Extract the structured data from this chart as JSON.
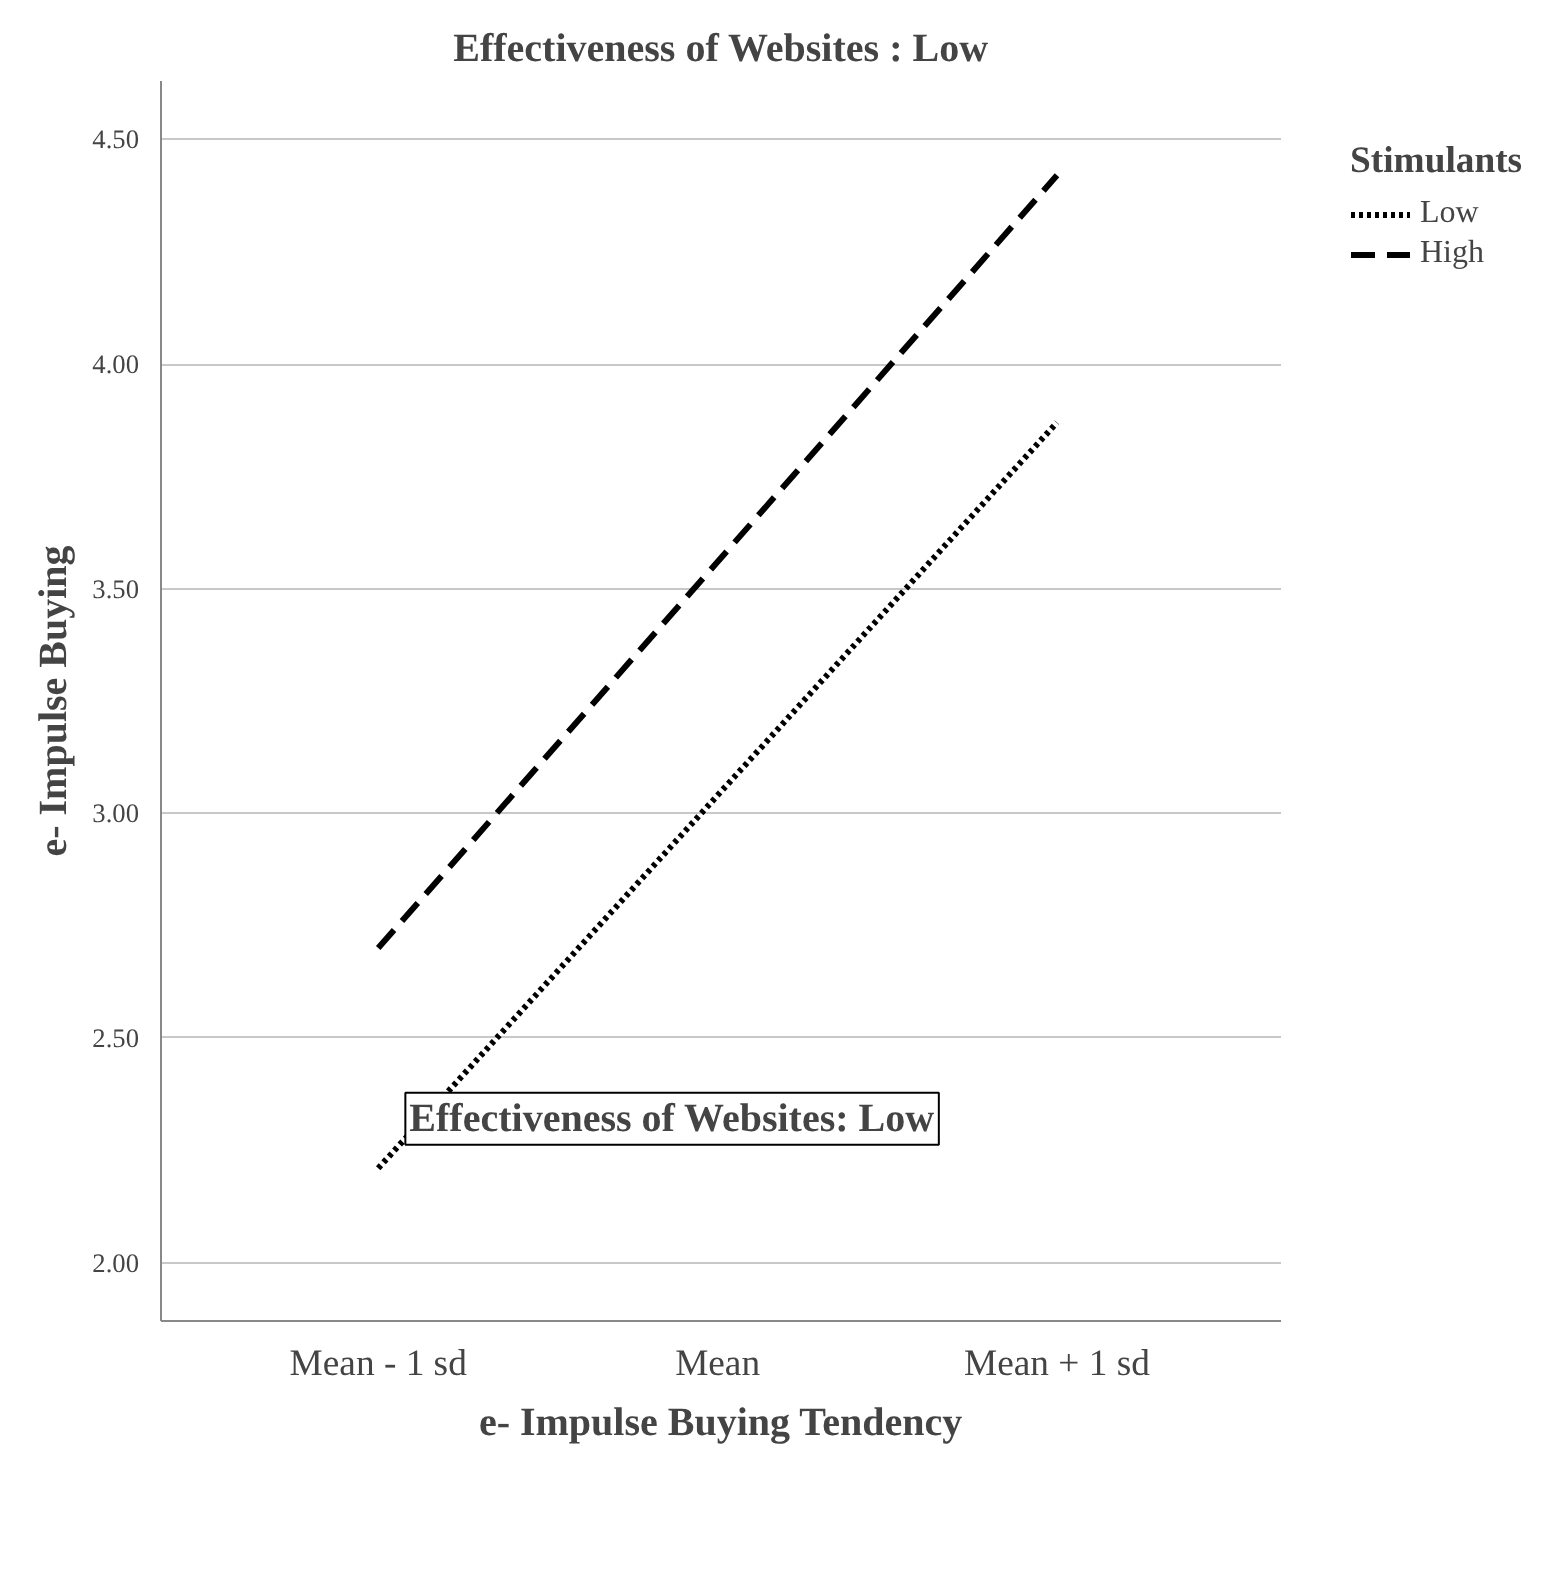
{
  "chart_data": {
    "type": "line",
    "title": "Effectiveness of Websites : Low",
    "xlabel": "e- Impulse Buying Tendency",
    "ylabel": "e- Impulse Buying",
    "legend_title": "Stimulants",
    "categories": [
      "Mean - 1 sd",
      "Mean",
      "Mean + 1 sd"
    ],
    "series": [
      {
        "name": "Low",
        "color": "#000000",
        "line_style": "dotted",
        "values": [
          2.21,
          3.04,
          3.87
        ]
      },
      {
        "name": "High",
        "color": "#000000",
        "line_style": "dashed",
        "values": [
          2.7,
          3.56,
          4.42
        ]
      }
    ],
    "ylim": [
      1.87,
      4.63
    ],
    "yticks": [
      {
        "value": 2,
        "label": "2.00"
      },
      {
        "value": 2.5,
        "label": "2.50"
      },
      {
        "value": 3,
        "label": "3.00"
      },
      {
        "value": 3.5,
        "label": "3.50"
      },
      {
        "value": 4,
        "label": "4.00"
      },
      {
        "value": 4.5,
        "label": "4.50"
      }
    ],
    "grid": "y",
    "legend": "top right",
    "marker": "none",
    "annotations": [
      "Effectiveness of Websites: Low"
    ]
  }
}
